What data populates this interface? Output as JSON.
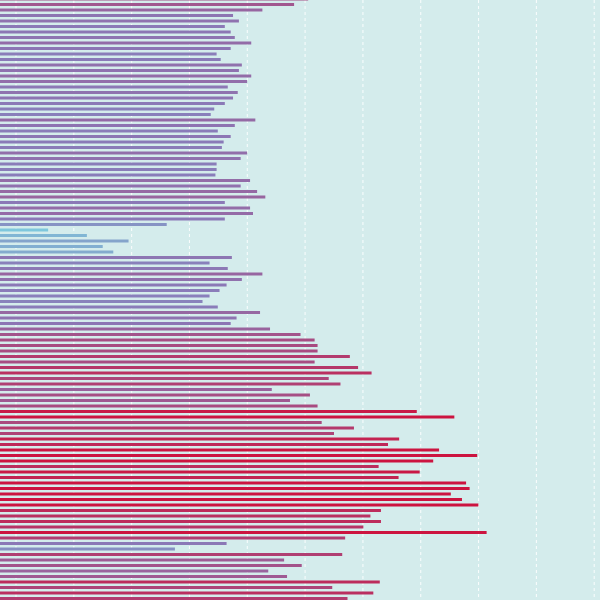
{
  "chart_data": {
    "type": "bar",
    "orientation": "horizontal",
    "title": "",
    "xlabel": "",
    "ylabel": "",
    "xlim": [
      0,
      100
    ],
    "grid": true,
    "legend": "none",
    "colors": {
      "background": "#d4ecec",
      "grid": "#ffffff",
      "low": "#7ec8dc",
      "mid": "#8a7ab8",
      "high": "#cc1440"
    },
    "values": [
      52.5,
      50.1,
      44.7,
      39.7,
      40.7,
      38.3,
      39.3,
      40.0,
      42.8,
      39.3,
      36.9,
      37.6,
      41.2,
      40.7,
      42.8,
      42.1,
      38.8,
      40.5,
      39.7,
      38.3,
      36.5,
      35.9,
      43.5,
      40.0,
      37.1,
      39.3,
      38.1,
      37.8,
      42.1,
      41.0,
      36.9,
      36.9,
      36.7,
      42.6,
      41.0,
      43.8,
      45.2,
      38.3,
      42.6,
      43.1,
      38.3,
      28.4,
      8.2,
      14.8,
      21.9,
      17.5,
      19.3,
      39.5,
      35.7,
      38.8,
      44.7,
      41.2,
      38.6,
      37.4,
      35.7,
      34.5,
      37.1,
      44.3,
      40.3,
      39.3,
      46.0,
      51.2,
      53.6,
      54.1,
      54.1,
      59.6,
      53.6,
      61.0,
      63.3,
      56.0,
      58.0,
      46.3,
      52.8,
      49.4,
      54.1,
      71.0,
      77.4,
      54.8,
      60.3,
      56.9,
      68.0,
      66.1,
      74.8,
      81.3,
      73.8,
      64.5,
      71.5,
      67.9,
      79.4,
      80.0,
      76.8,
      78.7,
      81.5,
      64.9,
      63.1,
      64.9,
      61.9,
      82.9,
      58.8,
      38.6,
      29.8,
      58.3,
      48.4,
      51.4,
      45.7,
      48.9,
      64.7,
      56.6,
      63.6,
      59.2,
      62.9,
      57.3,
      55.6,
      54.1,
      56.6,
      58.1
    ]
  }
}
